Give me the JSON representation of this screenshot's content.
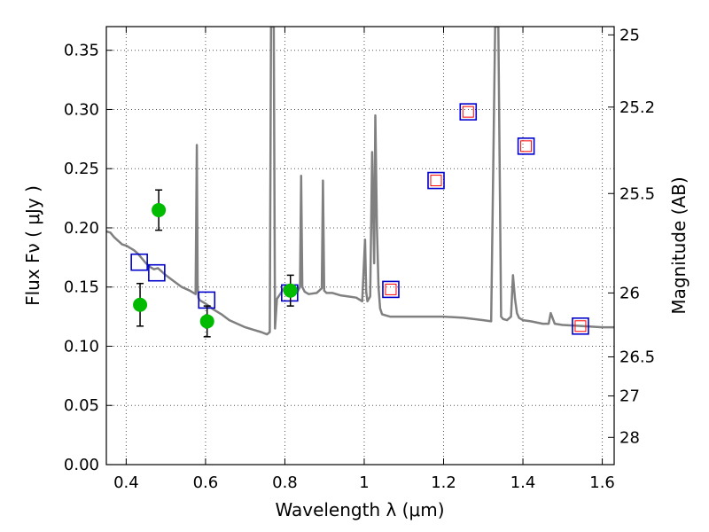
{
  "chart_data": {
    "type": "line",
    "xlabel": "Wavelength  λ (μm)",
    "ylabel": "Flux  Fν  ( μJy )",
    "y2label": "Magnitude (AB)",
    "xlim": [
      0.35,
      1.63
    ],
    "ylim": [
      0.0,
      0.37
    ],
    "grid": true,
    "x_ticks": [
      "0.4",
      "0.6",
      "0.8",
      "1",
      "1.2",
      "1.4",
      "1.6"
    ],
    "x_tick_values": [
      0.4,
      0.6,
      0.8,
      1.0,
      1.2,
      1.4,
      1.6
    ],
    "y_ticks": [
      "0.00",
      "0.05",
      "0.10",
      "0.15",
      "0.20",
      "0.25",
      "0.30",
      "0.35"
    ],
    "y_tick_values": [
      0.0,
      0.05,
      0.1,
      0.15,
      0.2,
      0.25,
      0.3,
      0.35
    ],
    "y2_ticks": [
      {
        "label": "25",
        "flux": 0.363
      },
      {
        "label": "25.2",
        "flux": 0.302
      },
      {
        "label": "25.5",
        "flux": 0.229
      },
      {
        "label": "26",
        "flux": 0.145
      },
      {
        "label": "26.5",
        "flux": 0.091
      },
      {
        "label": "27",
        "flux": 0.058
      },
      {
        "label": "28",
        "flux": 0.023
      }
    ],
    "colors": {
      "model": "#808080",
      "observed": "#00bb00",
      "model_box": "#0000cc",
      "model_inner": "#ff0000",
      "grid": "#555555",
      "error_bar": "#000000"
    },
    "series": [
      {
        "style": "line",
        "x": [
          0.35,
          0.36,
          0.37,
          0.38,
          0.39,
          0.4,
          0.41,
          0.42,
          0.43,
          0.44,
          0.45,
          0.46,
          0.47,
          0.48,
          0.49,
          0.5,
          0.52,
          0.54,
          0.56,
          0.575,
          0.578,
          0.58,
          0.582,
          0.585,
          0.6,
          0.62,
          0.64,
          0.66,
          0.68,
          0.7,
          0.72,
          0.74,
          0.755,
          0.762,
          0.765,
          0.768,
          0.772,
          0.775,
          0.78,
          0.79,
          0.8,
          0.81,
          0.82,
          0.83,
          0.838,
          0.841,
          0.844,
          0.85,
          0.86,
          0.88,
          0.893,
          0.896,
          0.899,
          0.905,
          0.92,
          0.94,
          0.96,
          0.98,
          0.995,
          1.002,
          1.005,
          1.008,
          1.015,
          1.02,
          1.025,
          1.028,
          1.032,
          1.036,
          1.04,
          1.045,
          1.055,
          1.065,
          1.08,
          1.1,
          1.15,
          1.2,
          1.25,
          1.3,
          1.32,
          1.33,
          1.332,
          1.335,
          1.338,
          1.345,
          1.35,
          1.36,
          1.37,
          1.375,
          1.38,
          1.385,
          1.39,
          1.4,
          1.42,
          1.45,
          1.465,
          1.47,
          1.48,
          1.5,
          1.55,
          1.6,
          1.63
        ],
        "y": [
          0.197,
          0.196,
          0.192,
          0.189,
          0.186,
          0.185,
          0.183,
          0.181,
          0.178,
          0.174,
          0.17,
          0.167,
          0.165,
          0.166,
          0.163,
          0.16,
          0.155,
          0.15,
          0.147,
          0.144,
          0.27,
          0.15,
          0.141,
          0.139,
          0.136,
          0.131,
          0.127,
          0.122,
          0.119,
          0.116,
          0.114,
          0.112,
          0.11,
          0.112,
          0.37,
          0.37,
          0.37,
          0.115,
          0.14,
          0.145,
          0.15,
          0.148,
          0.146,
          0.145,
          0.15,
          0.244,
          0.15,
          0.146,
          0.144,
          0.145,
          0.149,
          0.24,
          0.147,
          0.145,
          0.145,
          0.143,
          0.142,
          0.141,
          0.138,
          0.19,
          0.146,
          0.138,
          0.142,
          0.264,
          0.17,
          0.295,
          0.2,
          0.15,
          0.132,
          0.127,
          0.126,
          0.125,
          0.125,
          0.125,
          0.125,
          0.125,
          0.124,
          0.122,
          0.121,
          0.37,
          0.37,
          0.37,
          0.37,
          0.125,
          0.123,
          0.122,
          0.125,
          0.16,
          0.14,
          0.128,
          0.124,
          0.122,
          0.121,
          0.119,
          0.119,
          0.128,
          0.119,
          0.118,
          0.117,
          0.116,
          0.116
        ]
      },
      {
        "style": "scatter",
        "x": [
          0.435,
          0.482,
          0.604,
          0.814
        ],
        "y": [
          0.135,
          0.215,
          0.121,
          0.147
        ],
        "yerr": [
          0.018,
          0.017,
          0.013,
          0.013
        ]
      },
      {
        "style": "scatter-box",
        "x": [
          0.433,
          0.477,
          0.603,
          0.812,
          1.067,
          1.181,
          1.262,
          1.408,
          1.545
        ],
        "y": [
          0.171,
          0.162,
          0.139,
          0.145,
          0.148,
          0.24,
          0.298,
          0.269,
          0.117
        ],
        "inner": [
          false,
          false,
          false,
          false,
          true,
          true,
          true,
          true,
          true
        ]
      }
    ]
  }
}
